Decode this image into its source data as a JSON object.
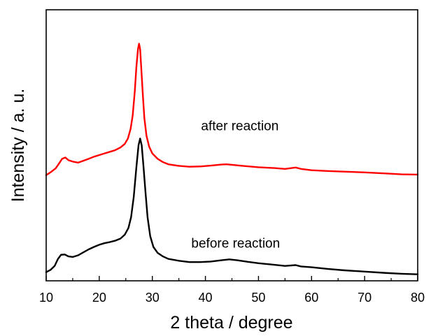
{
  "chart_data": {
    "type": "line",
    "title": "",
    "xlabel": "2 theta / degree",
    "ylabel": "Intensity / a. u.",
    "xlim": [
      10,
      80
    ],
    "ylim": [
      0,
      100
    ],
    "xticks": [
      10,
      20,
      30,
      40,
      50,
      60,
      70,
      80
    ],
    "yticks_shown": false,
    "grid": false,
    "legend": "none",
    "series": [
      {
        "name": "after reaction",
        "color": "#ff0000",
        "label_anchor": {
          "x": 46.5,
          "y": 55.5
        },
        "points": [
          [
            10.0,
            39.0
          ],
          [
            10.8,
            40.0
          ],
          [
            11.8,
            41.5
          ],
          [
            12.5,
            43.5
          ],
          [
            13.0,
            45.0
          ],
          [
            13.6,
            45.5
          ],
          [
            14.2,
            44.5
          ],
          [
            15.0,
            44.0
          ],
          [
            16.0,
            43.6
          ],
          [
            17.0,
            44.3
          ],
          [
            18.0,
            45.0
          ],
          [
            19.0,
            45.8
          ],
          [
            20.0,
            46.4
          ],
          [
            21.0,
            47.0
          ],
          [
            22.0,
            47.6
          ],
          [
            23.0,
            48.2
          ],
          [
            24.0,
            49.2
          ],
          [
            24.8,
            50.5
          ],
          [
            25.4,
            52.5
          ],
          [
            25.9,
            56.0
          ],
          [
            26.3,
            61.0
          ],
          [
            26.7,
            70.0
          ],
          [
            27.0,
            79.0
          ],
          [
            27.3,
            85.5
          ],
          [
            27.5,
            87.5
          ],
          [
            27.7,
            85.5
          ],
          [
            27.9,
            79.0
          ],
          [
            28.2,
            69.0
          ],
          [
            28.5,
            60.0
          ],
          [
            28.9,
            53.5
          ],
          [
            29.4,
            49.5
          ],
          [
            30.0,
            47.0
          ],
          [
            31.0,
            45.0
          ],
          [
            32.0,
            43.8
          ],
          [
            33.0,
            43.0
          ],
          [
            35.0,
            42.4
          ],
          [
            37.0,
            42.1
          ],
          [
            39.0,
            42.2
          ],
          [
            41.0,
            42.5
          ],
          [
            43.0,
            42.9
          ],
          [
            44.0,
            43.0
          ],
          [
            45.0,
            42.8
          ],
          [
            47.0,
            42.4
          ],
          [
            50.0,
            41.9
          ],
          [
            53.0,
            41.6
          ],
          [
            55.0,
            41.3
          ],
          [
            57.0,
            41.8
          ],
          [
            58.0,
            41.3
          ],
          [
            60.0,
            40.8
          ],
          [
            63.0,
            40.5
          ],
          [
            66.0,
            40.3
          ],
          [
            70.0,
            40.0
          ],
          [
            74.0,
            39.6
          ],
          [
            77.0,
            39.3
          ],
          [
            80.0,
            39.2
          ]
        ]
      },
      {
        "name": "before reaction",
        "color": "#000000",
        "label_anchor": {
          "x": 45.7,
          "y": 12.2
        },
        "points": [
          [
            10.0,
            3.2
          ],
          [
            10.8,
            4.0
          ],
          [
            11.6,
            5.5
          ],
          [
            12.2,
            8.0
          ],
          [
            12.8,
            9.6
          ],
          [
            13.5,
            9.7
          ],
          [
            14.2,
            9.0
          ],
          [
            15.0,
            8.8
          ],
          [
            16.0,
            9.4
          ],
          [
            17.0,
            10.5
          ],
          [
            18.0,
            11.6
          ],
          [
            19.0,
            12.5
          ],
          [
            20.0,
            13.3
          ],
          [
            21.0,
            13.9
          ],
          [
            22.0,
            14.3
          ],
          [
            23.0,
            14.8
          ],
          [
            24.0,
            15.6
          ],
          [
            24.8,
            17.0
          ],
          [
            25.5,
            19.5
          ],
          [
            26.0,
            23.5
          ],
          [
            26.5,
            31.0
          ],
          [
            27.0,
            42.0
          ],
          [
            27.4,
            50.0
          ],
          [
            27.7,
            52.5
          ],
          [
            28.0,
            50.0
          ],
          [
            28.3,
            43.0
          ],
          [
            28.7,
            33.0
          ],
          [
            29.1,
            23.5
          ],
          [
            29.6,
            16.5
          ],
          [
            30.2,
            12.5
          ],
          [
            31.0,
            10.3
          ],
          [
            32.0,
            9.0
          ],
          [
            33.0,
            8.1
          ],
          [
            35.0,
            7.4
          ],
          [
            37.0,
            6.9
          ],
          [
            39.0,
            6.9
          ],
          [
            41.0,
            7.1
          ],
          [
            43.0,
            7.6
          ],
          [
            44.5,
            7.9
          ],
          [
            46.0,
            7.6
          ],
          [
            48.0,
            7.0
          ],
          [
            50.0,
            6.5
          ],
          [
            53.0,
            5.9
          ],
          [
            55.0,
            5.5
          ],
          [
            57.0,
            5.8
          ],
          [
            58.0,
            5.3
          ],
          [
            60.0,
            5.0
          ],
          [
            63.0,
            4.4
          ],
          [
            66.0,
            3.9
          ],
          [
            70.0,
            3.4
          ],
          [
            74.0,
            2.9
          ],
          [
            77.0,
            2.6
          ],
          [
            80.0,
            2.4
          ]
        ]
      }
    ]
  }
}
